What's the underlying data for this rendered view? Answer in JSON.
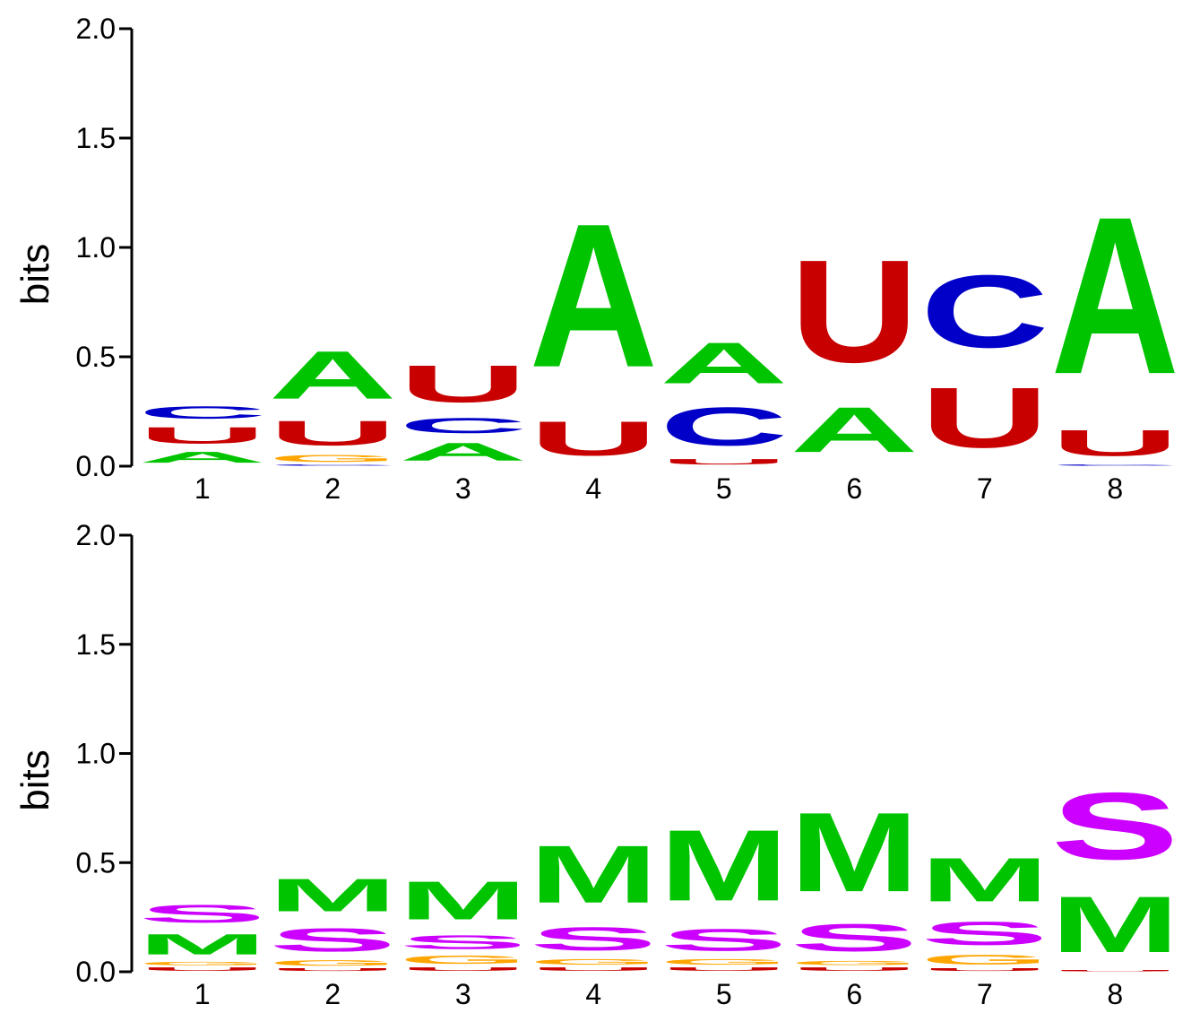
{
  "colors": {
    "A": "#00c400",
    "C": "#0000c8",
    "G": "#ffa500",
    "U": "#c80000",
    "M": "#00c400",
    "S": "#cc00ff",
    "other": "#ffa500"
  },
  "chart_data": [
    {
      "type": "sequence-logo",
      "ylabel": "bits",
      "ylim": [
        0,
        2.0
      ],
      "yticks": [
        "0.0",
        "0.5",
        "1.0",
        "1.5",
        "2.0"
      ],
      "positions": [
        "1",
        "2",
        "3",
        "4",
        "5",
        "6",
        "7",
        "8"
      ],
      "stacks": [
        [
          {
            "letter": "A",
            "bits": 0.08
          },
          {
            "letter": "U",
            "bits": 0.12
          },
          {
            "letter": "C",
            "bits": 0.09
          }
        ],
        [
          {
            "letter": "C",
            "bits": 0.01
          },
          {
            "letter": "G",
            "bits": 0.05
          },
          {
            "letter": "U",
            "bits": 0.18
          },
          {
            "letter": "A",
            "bits": 0.35
          }
        ],
        [
          {
            "letter": "A",
            "bits": 0.13
          },
          {
            "letter": "C",
            "bits": 0.11
          },
          {
            "letter": "U",
            "bits": 0.27
          }
        ],
        [
          {
            "letter": "U",
            "bits": 0.25
          },
          {
            "letter": "A",
            "bits": 1.05
          }
        ],
        [
          {
            "letter": "U",
            "bits": 0.04
          },
          {
            "letter": "C",
            "bits": 0.28
          },
          {
            "letter": "A",
            "bits": 0.3
          }
        ],
        [
          {
            "letter": "A",
            "bits": 0.33
          },
          {
            "letter": "U",
            "bits": 0.75
          }
        ],
        [
          {
            "letter": "U",
            "bits": 0.44
          },
          {
            "letter": "C",
            "bits": 0.53
          }
        ],
        [
          {
            "letter": "C",
            "bits": 0.01
          },
          {
            "letter": "U",
            "bits": 0.19
          },
          {
            "letter": "A",
            "bits": 1.15
          }
        ]
      ]
    },
    {
      "type": "sequence-logo",
      "ylabel": "bits",
      "ylim": [
        0,
        2.0
      ],
      "yticks": [
        "0.0",
        "0.5",
        "1.0",
        "1.5",
        "2.0"
      ],
      "positions": [
        "1",
        "2",
        "3",
        "4",
        "5",
        "6",
        "7",
        "8"
      ],
      "stacks": [
        [
          {
            "letter": "U",
            "bits": 0.025
          },
          {
            "letter": "G",
            "bits": 0.025
          },
          {
            "letter": "M",
            "bits": 0.15
          },
          {
            "letter": "S",
            "bits": 0.13
          }
        ],
        [
          {
            "letter": "U",
            "bits": 0.02
          },
          {
            "letter": "G",
            "bits": 0.04
          },
          {
            "letter": "S",
            "bits": 0.17
          },
          {
            "letter": "M",
            "bits": 0.24
          }
        ],
        [
          {
            "letter": "U",
            "bits": 0.025
          },
          {
            "letter": "G",
            "bits": 0.06
          },
          {
            "letter": "S",
            "bits": 0.1
          },
          {
            "letter": "M",
            "bits": 0.28
          }
        ],
        [
          {
            "letter": "U",
            "bits": 0.025
          },
          {
            "letter": "G",
            "bits": 0.04
          },
          {
            "letter": "S",
            "bits": 0.17
          },
          {
            "letter": "M",
            "bits": 0.42
          }
        ],
        [
          {
            "letter": "U",
            "bits": 0.025
          },
          {
            "letter": "G",
            "bits": 0.04
          },
          {
            "letter": "S",
            "bits": 0.16
          },
          {
            "letter": "M",
            "bits": 0.52
          }
        ],
        [
          {
            "letter": "U",
            "bits": 0.025
          },
          {
            "letter": "G",
            "bits": 0.03
          },
          {
            "letter": "S",
            "bits": 0.2
          },
          {
            "letter": "M",
            "bits": 0.58
          }
        ],
        [
          {
            "letter": "U",
            "bits": 0.02
          },
          {
            "letter": "G",
            "bits": 0.07
          },
          {
            "letter": "S",
            "bits": 0.17
          },
          {
            "letter": "M",
            "bits": 0.32
          }
        ],
        [
          {
            "letter": "U",
            "bits": 0.01
          },
          {
            "letter": "M",
            "bits": 0.41
          },
          {
            "letter": "S",
            "bits": 0.49
          }
        ]
      ]
    }
  ]
}
